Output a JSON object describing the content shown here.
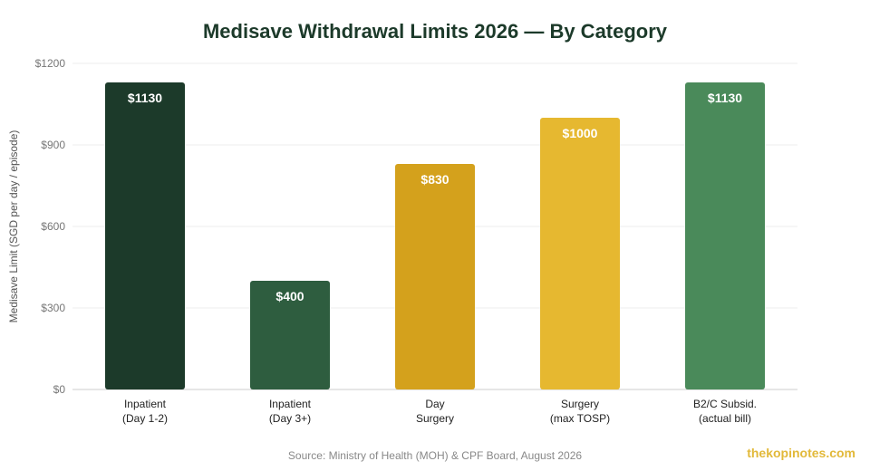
{
  "chart_data": {
    "type": "bar",
    "title": "Medisave Withdrawal Limits 2026 — By Category",
    "ylabel": "Medisave Limit (SGD per day / episode)",
    "xlabel": "",
    "ylim": [
      0,
      1200
    ],
    "yticks": [
      0,
      300,
      600,
      900,
      1200
    ],
    "ytick_labels": [
      "$0",
      "$300",
      "$600",
      "$900",
      "$1200"
    ],
    "grid": true,
    "categories": [
      [
        "Inpatient",
        "(Day 1-2)"
      ],
      [
        "Inpatient",
        "(Day 3+)"
      ],
      [
        "Day",
        "Surgery"
      ],
      [
        "Surgery",
        "(max TOSP)"
      ],
      [
        "B2/C Subsid.",
        "(actual bill)"
      ]
    ],
    "values": [
      1130,
      400,
      830,
      1000,
      1130
    ],
    "value_labels": [
      "$1130",
      "$400",
      "$830",
      "$1000",
      "$1130"
    ],
    "colors": [
      "#1c3a2a",
      "#2e5d3f",
      "#d4a11c",
      "#e6b830",
      "#4a8a5a"
    ]
  },
  "source": "Source: Ministry of Health (MOH) & CPF Board, August 2026",
  "watermark": "thekopinotes.com"
}
